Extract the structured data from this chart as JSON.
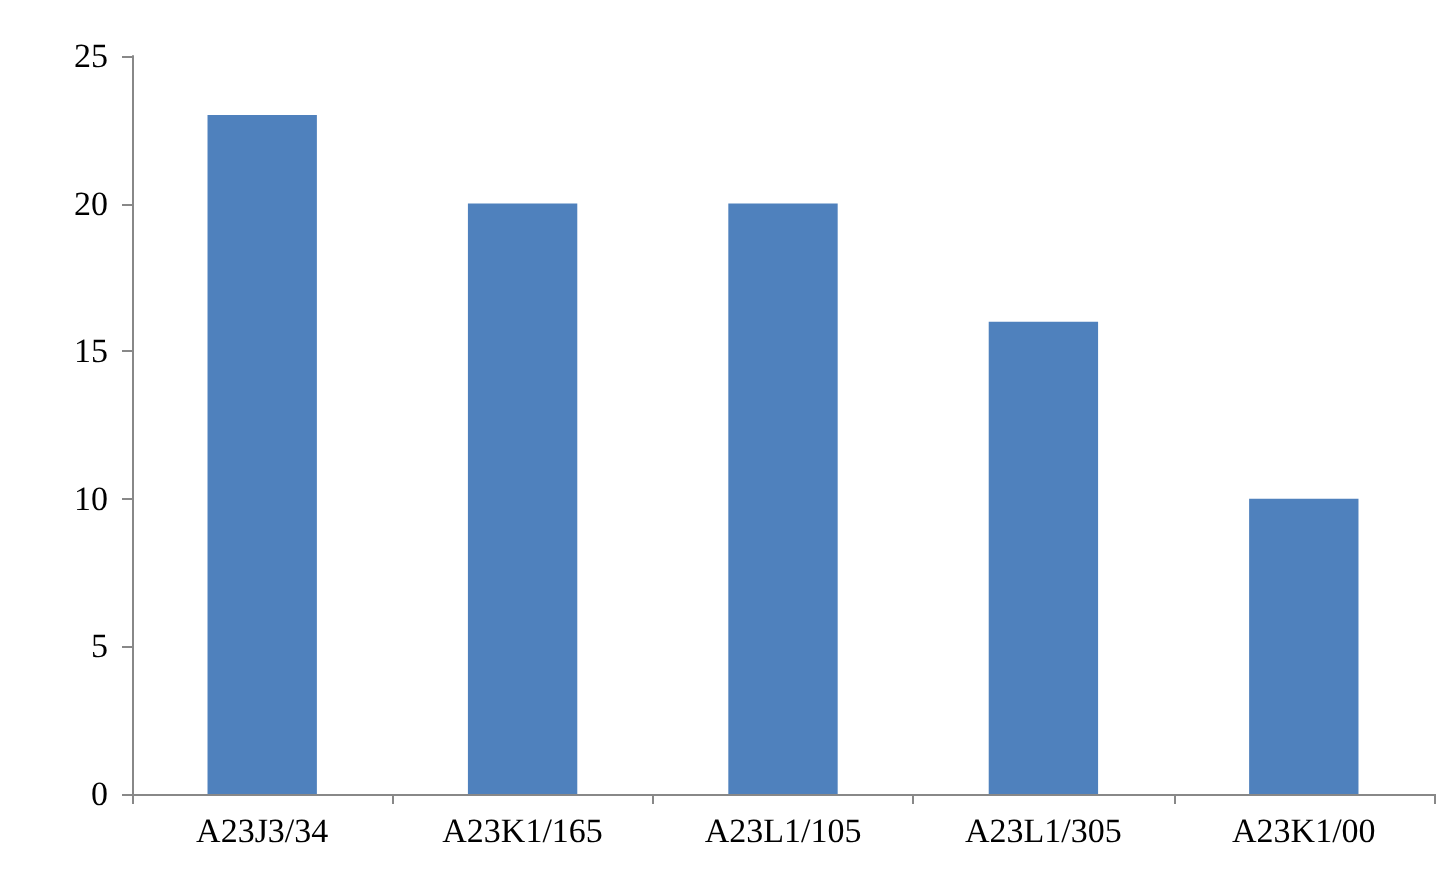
{
  "chart_data": {
    "type": "bar",
    "categories": [
      "A23J3/34",
      "A23K1/165",
      "A23L1/105",
      "A23L1/305",
      "A23K1/00"
    ],
    "values": [
      23,
      20,
      20,
      16,
      10
    ],
    "color": "#4f81bd",
    "ylim": [
      0,
      25
    ],
    "yticks": [
      0,
      5,
      10,
      15,
      20,
      25
    ],
    "grid": false
  }
}
